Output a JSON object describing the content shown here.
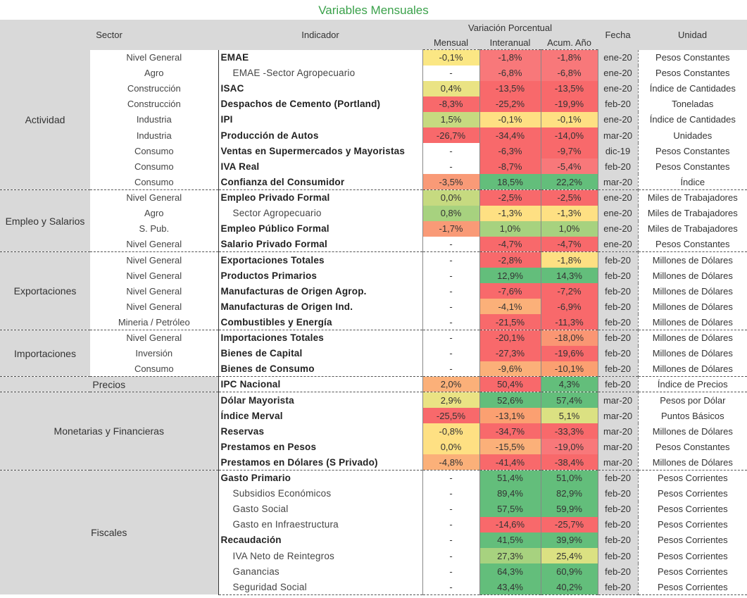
{
  "title": "Variables Mensuales",
  "headers": {
    "sector": "Sector",
    "indicador": "Indicador",
    "variacion": "Variación Porcentual",
    "mensual": "Mensual",
    "interanual": "Interanual",
    "acum": "Acum. Año",
    "fecha": "Fecha",
    "unidad": "Unidad"
  },
  "sections": [
    {
      "name": "Actividad",
      "rows": [
        {
          "sub": "Nivel General",
          "ind": "EMAE",
          "bold": true,
          "indent": false,
          "m": "-0,1%",
          "i": "-1,8%",
          "a": "-1,8%",
          "fecha": "ene-20",
          "unidad": "Pesos Constantes",
          "cm": "#fbe784",
          "ci": "#f8787a",
          "ca": "#f8787a"
        },
        {
          "sub": "Agro",
          "ind": "EMAE -Sector Agropecuario",
          "bold": false,
          "indent": true,
          "m": "-",
          "i": "-6,8%",
          "a": "-6,8%",
          "fecha": "ene-20",
          "unidad": "Pesos Constantes",
          "cm": "",
          "ci": "#f8787a",
          "ca": "#f8787a"
        },
        {
          "sub": "Construcción",
          "ind": "ISAC",
          "bold": true,
          "indent": false,
          "m": "0,4%",
          "i": "-13,5%",
          "a": "-13,5%",
          "fecha": "ene-20",
          "unidad": "Índice de Cantidades",
          "cm": "#eae384",
          "ci": "#f8696b",
          "ca": "#f8696b"
        },
        {
          "sub": "Construcción",
          "ind": "Despachos de Cemento (Portland)",
          "bold": true,
          "indent": false,
          "m": "-8,3%",
          "i": "-25,2%",
          "a": "-19,9%",
          "fecha": "feb-20",
          "unidad": "Toneladas",
          "cm": "#f8696b",
          "ci": "#f8696b",
          "ca": "#f8696b"
        },
        {
          "sub": "Industria",
          "ind": "IPI",
          "bold": true,
          "indent": false,
          "m": "1,5%",
          "i": "-0,1%",
          "a": "-0,1%",
          "fecha": "ene-20",
          "unidad": "Índice de Cantidades",
          "cm": "#c6da80",
          "ci": "#fee083",
          "ca": "#fee083"
        },
        {
          "sub": "Industria",
          "ind": "Producción de Autos",
          "bold": true,
          "indent": false,
          "m": "-26,7%",
          "i": "-34,4%",
          "a": "-14,0%",
          "fecha": "mar-20",
          "unidad": "Unidades",
          "cm": "#f8696b",
          "ci": "#f8696b",
          "ca": "#f8696b"
        },
        {
          "sub": "Consumo",
          "ind": "Ventas en Supermercados y Mayoristas",
          "bold": true,
          "indent": false,
          "m": "-",
          "i": "-6,3%",
          "a": "-9,7%",
          "fecha": "dic-19",
          "unidad": "Pesos Constantes",
          "cm": "",
          "ci": "#f8696b",
          "ca": "#f8696b"
        },
        {
          "sub": "Consumo",
          "ind": "IVA Real",
          "bold": true,
          "indent": false,
          "m": "-",
          "i": "-8,7%",
          "a": "-5,4%",
          "fecha": "feb-20",
          "unidad": "Pesos Constantes",
          "cm": "",
          "ci": "#f8696b",
          "ca": "#f8787a"
        },
        {
          "sub": "Consumo",
          "ind": "Confianza del Consumidor",
          "bold": true,
          "indent": false,
          "m": "-3,5%",
          "i": "18,5%",
          "a": "22,2%",
          "fecha": "mar-20",
          "unidad": "Índice",
          "cm": "#f99a77",
          "ci": "#63be7b",
          "ca": "#63be7b"
        }
      ]
    },
    {
      "name": "Empleo y Salarios",
      "rows": [
        {
          "sub": "Nivel General",
          "ind": "Empleo Privado Formal",
          "bold": true,
          "indent": false,
          "m": "0,0%",
          "i": "-2,5%",
          "a": "-2,5%",
          "fecha": "ene-20",
          "unidad": "Miles de Trabajadores",
          "cm": "#c6da80",
          "ci": "#f8696b",
          "ca": "#f8696b"
        },
        {
          "sub": "Agro",
          "ind": "Sector Agropecuario",
          "bold": false,
          "indent": true,
          "m": "0,8%",
          "i": "-1,3%",
          "a": "-1,3%",
          "fecha": "ene-20",
          "unidad": "Miles de Trabajadores",
          "cm": "#a7d27f",
          "ci": "#fee083",
          "ca": "#fee083"
        },
        {
          "sub": "S. Pub.",
          "ind": "Empleo Público Formal",
          "bold": true,
          "indent": false,
          "m": "-1,7%",
          "i": "1,0%",
          "a": "1,0%",
          "fecha": "ene-20",
          "unidad": "Miles de Trabajadores",
          "cm": "#f99a77",
          "ci": "#a7d27f",
          "ca": "#a7d27f"
        },
        {
          "sub": "Nivel General",
          "ind": "Salario Privado Formal",
          "bold": true,
          "indent": false,
          "m": "-",
          "i": "-4,7%",
          "a": "-4,7%",
          "fecha": "ene-20",
          "unidad": "Pesos Constantes",
          "cm": "",
          "ci": "#f8696b",
          "ca": "#f8696b"
        }
      ]
    },
    {
      "name": "Exportaciones",
      "rows": [
        {
          "sub": "Nivel General",
          "ind": "Exportaciones Totales",
          "bold": true,
          "indent": false,
          "m": "-",
          "i": "-2,8%",
          "a": "-1,8%",
          "fecha": "feb-20",
          "unidad": "Millones de Dólares",
          "cm": "",
          "ci": "#f8696b",
          "ca": "#fee083"
        },
        {
          "sub": "Nivel General",
          "ind": "Productos Primarios",
          "bold": true,
          "indent": false,
          "m": "-",
          "i": "12,9%",
          "a": "14,3%",
          "fecha": "feb-20",
          "unidad": "Millones de Dólares",
          "cm": "",
          "ci": "#63be7b",
          "ca": "#63be7b"
        },
        {
          "sub": "Nivel General",
          "ind": "Manufacturas de Origen Agrop.",
          "bold": true,
          "indent": false,
          "m": "-",
          "i": "-7,6%",
          "a": "-7,2%",
          "fecha": "feb-20",
          "unidad": "Millones de Dólares",
          "cm": "",
          "ci": "#f8696b",
          "ca": "#f8696b"
        },
        {
          "sub": "Nivel General",
          "ind": "Manufacturas de Origen Ind.",
          "bold": true,
          "indent": false,
          "m": "-",
          "i": "-4,1%",
          "a": "-6,9%",
          "fecha": "feb-20",
          "unidad": "Millones de Dólares",
          "cm": "",
          "ci": "#fbb079",
          "ca": "#f8696b"
        },
        {
          "sub": "Mineria / Petróleo",
          "ind": "Combustibles y Energía",
          "bold": true,
          "indent": false,
          "m": "-",
          "i": "-21,5%",
          "a": "-11,3%",
          "fecha": "feb-20",
          "unidad": "Millones de Dólares",
          "cm": "",
          "ci": "#f8696b",
          "ca": "#f8696b"
        }
      ]
    },
    {
      "name": "Importaciones",
      "rows": [
        {
          "sub": "Nivel General",
          "ind": "Importaciones Totales",
          "bold": true,
          "indent": false,
          "m": "-",
          "i": "-20,1%",
          "a": "-18,0%",
          "fecha": "feb-20",
          "unidad": "Millones de Dólares",
          "cm": "",
          "ci": "#f8696b",
          "ca": "#fa9673"
        },
        {
          "sub": "Inversión",
          "ind": "Bienes de Capital",
          "bold": true,
          "indent": false,
          "m": "-",
          "i": "-27,3%",
          "a": "-19,6%",
          "fecha": "feb-20",
          "unidad": "Millones de Dólares",
          "cm": "",
          "ci": "#f8696b",
          "ca": "#f8696b"
        },
        {
          "sub": "Consumo",
          "ind": "Bienes de Consumo",
          "bold": true,
          "indent": false,
          "m": "-",
          "i": "-9,6%",
          "a": "-10,1%",
          "fecha": "feb-20",
          "unidad": "Millones de Dólares",
          "cm": "",
          "ci": "#fbb079",
          "ca": "#fba071"
        }
      ]
    },
    {
      "name": "Precios",
      "rows": [
        {
          "sub": "",
          "ind": "IPC Nacional",
          "bold": true,
          "indent": false,
          "m": "2,0%",
          "i": "50,4%",
          "a": "4,3%",
          "fecha": "feb-20",
          "unidad": "Índice de Precios",
          "cm": "#fbb079",
          "ci": "#f8696b",
          "ca": "#63be7b"
        }
      ]
    },
    {
      "name": "Monetarias y Financieras",
      "rows": [
        {
          "sub": "",
          "ind": "Dólar Mayorista",
          "bold": true,
          "indent": false,
          "m": "2,9%",
          "i": "52,6%",
          "a": "57,4%",
          "fecha": "mar-20",
          "unidad": "Pesos por Dólar",
          "cm": "#eae384",
          "ci": "#63be7b",
          "ca": "#63be7b"
        },
        {
          "sub": "",
          "ind": "Índice Merval",
          "bold": true,
          "indent": false,
          "m": "-25,5%",
          "i": "-13,1%",
          "a": "5,1%",
          "fecha": "mar-20",
          "unidad": "Puntos Básicos",
          "cm": "#f8696b",
          "ci": "#fba071",
          "ca": "#dbe182"
        },
        {
          "sub": "",
          "ind": "Reservas",
          "bold": true,
          "indent": false,
          "m": "-0,8%",
          "i": "-34,7%",
          "a": "-33,3%",
          "fecha": "mar-20",
          "unidad": "Millones de Dólares",
          "cm": "#fee083",
          "ci": "#f8696b",
          "ca": "#f8696b"
        },
        {
          "sub": "",
          "ind": "Prestamos en Pesos",
          "bold": true,
          "indent": false,
          "m": "0,0%",
          "i": "-15,5%",
          "a": "-19,0%",
          "fecha": "mar-20",
          "unidad": "Pesos Constantes",
          "cm": "#fee083",
          "ci": "#fbb079",
          "ca": "#f8787a"
        },
        {
          "sub": "",
          "ind": "Prestamos en Dólares (S Privado)",
          "bold": true,
          "indent": false,
          "m": "-4,8%",
          "i": "-41,4%",
          "a": "-38,4%",
          "fecha": "mar-20",
          "unidad": "Millones de Dólares",
          "cm": "#fbb079",
          "ci": "#f8696b",
          "ca": "#f8696b"
        }
      ]
    },
    {
      "name": "Fiscales",
      "rows": [
        {
          "sub": "",
          "ind": "Gasto Primario",
          "bold": true,
          "indent": false,
          "m": "-",
          "i": "51,4%",
          "a": "51,0%",
          "fecha": "feb-20",
          "unidad": "Pesos Corrientes",
          "cm": "",
          "ci": "#63be7b",
          "ca": "#63be7b"
        },
        {
          "sub": "",
          "ind": "Subsidios Económicos",
          "bold": false,
          "indent": true,
          "m": "-",
          "i": "89,4%",
          "a": "82,9%",
          "fecha": "feb-20",
          "unidad": "Pesos Corrientes",
          "cm": "",
          "ci": "#63be7b",
          "ca": "#63be7b"
        },
        {
          "sub": "",
          "ind": "Gasto Social",
          "bold": false,
          "indent": true,
          "m": "-",
          "i": "57,5%",
          "a": "59,9%",
          "fecha": "feb-20",
          "unidad": "Pesos Corrientes",
          "cm": "",
          "ci": "#63be7b",
          "ca": "#63be7b"
        },
        {
          "sub": "",
          "ind": "Gasto en Infraestructura",
          "bold": false,
          "indent": true,
          "m": "-",
          "i": "-14,6%",
          "a": "-25,7%",
          "fecha": "feb-20",
          "unidad": "Pesos Corrientes",
          "cm": "",
          "ci": "#f8696b",
          "ca": "#f8696b"
        },
        {
          "sub": "",
          "ind": "Recaudación",
          "bold": true,
          "indent": false,
          "m": "-",
          "i": "41,5%",
          "a": "39,9%",
          "fecha": "feb-20",
          "unidad": "Pesos Corrientes",
          "cm": "",
          "ci": "#63be7b",
          "ca": "#63be7b"
        },
        {
          "sub": "",
          "ind": "IVA Neto de Reintegros",
          "bold": false,
          "indent": true,
          "m": "-",
          "i": "27,3%",
          "a": "25,4%",
          "fecha": "feb-20",
          "unidad": "Pesos Corrientes",
          "cm": "",
          "ci": "#a7d27f",
          "ca": "#dbe182"
        },
        {
          "sub": "",
          "ind": "Ganancias",
          "bold": false,
          "indent": true,
          "m": "-",
          "i": "64,3%",
          "a": "60,9%",
          "fecha": "feb-20",
          "unidad": "Pesos Corrientes",
          "cm": "",
          "ci": "#63be7b",
          "ca": "#63be7b"
        },
        {
          "sub": "",
          "ind": "Seguridad Social",
          "bold": false,
          "indent": true,
          "m": "-",
          "i": "43,4%",
          "a": "40,2%",
          "fecha": "feb-20",
          "unidad": "Pesos Corrientes",
          "cm": "",
          "ci": "#63be7b",
          "ca": "#63be7b"
        }
      ]
    }
  ]
}
